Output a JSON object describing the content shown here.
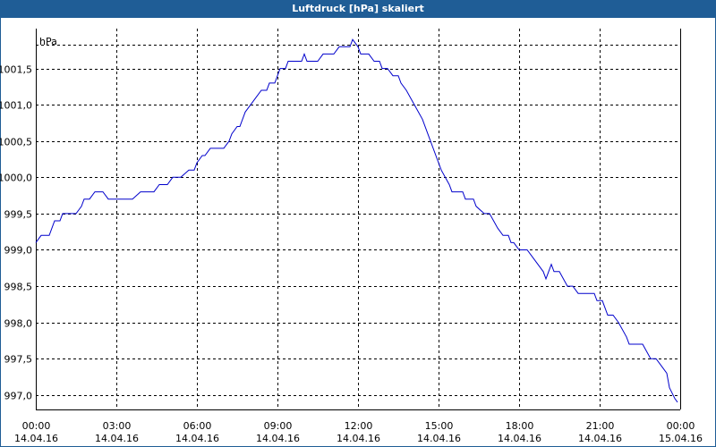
{
  "window": {
    "title": "Luftdruck [hPa] skaliert"
  },
  "colors": {
    "titlebar": "#1f5d96",
    "line": "#0000cc",
    "grid": "#000000"
  },
  "chart_data": {
    "type": "line",
    "title": "Luftdruck [hPa] skaliert",
    "ylabel": "hPa",
    "xlabel": "",
    "grid": true,
    "legend": "none",
    "x_unit": "hours",
    "xlim": [
      0,
      24
    ],
    "ylim": [
      996.8,
      1002.05
    ],
    "y_ticks": [
      997.0,
      997.5,
      998.0,
      998.5,
      999.0,
      999.5,
      1000.0,
      1000.5,
      1001.0,
      1001.5
    ],
    "y_tick_labels": [
      "997,0",
      "997,5",
      "998,0",
      "998,5",
      "999,0",
      "999,5",
      "1000,0",
      "1000,5",
      "1001,0",
      "1001,5"
    ],
    "x_ticks": [
      0,
      3,
      6,
      9,
      12,
      15,
      18,
      21,
      24
    ],
    "x_tick_labels": [
      {
        "time": "00:00",
        "date": "14.04.16"
      },
      {
        "time": "03:00",
        "date": "14.04.16"
      },
      {
        "time": "06:00",
        "date": "14.04.16"
      },
      {
        "time": "09:00",
        "date": "14.04.16"
      },
      {
        "time": "12:00",
        "date": "14.04.16"
      },
      {
        "time": "15:00",
        "date": "14.04.16"
      },
      {
        "time": "18:00",
        "date": "14.04.16"
      },
      {
        "time": "21:00",
        "date": "14.04.16"
      },
      {
        "time": "00:00",
        "date": "15.04.16"
      }
    ],
    "series": [
      {
        "points": [
          [
            0.0,
            999.1
          ],
          [
            0.2,
            999.2
          ],
          [
            0.5,
            999.2
          ],
          [
            0.7,
            999.4
          ],
          [
            0.9,
            999.4
          ],
          [
            1.0,
            999.5
          ],
          [
            1.5,
            999.5
          ],
          [
            1.7,
            999.6
          ],
          [
            1.8,
            999.7
          ],
          [
            2.0,
            999.7
          ],
          [
            2.2,
            999.8
          ],
          [
            2.5,
            999.8
          ],
          [
            2.7,
            999.7
          ],
          [
            3.6,
            999.7
          ],
          [
            3.9,
            999.8
          ],
          [
            4.4,
            999.8
          ],
          [
            4.6,
            999.9
          ],
          [
            4.9,
            999.9
          ],
          [
            5.1,
            1000.0
          ],
          [
            5.4,
            1000.0
          ],
          [
            5.7,
            1000.1
          ],
          [
            5.9,
            1000.1
          ],
          [
            6.0,
            1000.2
          ],
          [
            6.2,
            1000.3
          ],
          [
            6.3,
            1000.3
          ],
          [
            6.5,
            1000.4
          ],
          [
            7.0,
            1000.4
          ],
          [
            7.2,
            1000.5
          ],
          [
            7.3,
            1000.6
          ],
          [
            7.5,
            1000.7
          ],
          [
            7.6,
            1000.7
          ],
          [
            7.8,
            1000.9
          ],
          [
            8.0,
            1001.0
          ],
          [
            8.2,
            1001.1
          ],
          [
            8.4,
            1001.2
          ],
          [
            8.6,
            1001.2
          ],
          [
            8.7,
            1001.3
          ],
          [
            8.9,
            1001.3
          ],
          [
            9.1,
            1001.5
          ],
          [
            9.3,
            1001.5
          ],
          [
            9.4,
            1001.6
          ],
          [
            9.9,
            1001.6
          ],
          [
            10.0,
            1001.7
          ],
          [
            10.1,
            1001.6
          ],
          [
            10.5,
            1001.6
          ],
          [
            10.7,
            1001.7
          ],
          [
            11.1,
            1001.7
          ],
          [
            11.3,
            1001.8
          ],
          [
            11.7,
            1001.8
          ],
          [
            11.8,
            1001.9
          ],
          [
            12.0,
            1001.8
          ],
          [
            12.1,
            1001.7
          ],
          [
            12.4,
            1001.7
          ],
          [
            12.6,
            1001.6
          ],
          [
            12.8,
            1001.6
          ],
          [
            12.9,
            1001.5
          ],
          [
            13.1,
            1001.5
          ],
          [
            13.3,
            1001.4
          ],
          [
            13.5,
            1001.4
          ],
          [
            13.6,
            1001.3
          ],
          [
            13.8,
            1001.2
          ],
          [
            14.1,
            1001.0
          ],
          [
            14.4,
            1000.8
          ],
          [
            14.6,
            1000.6
          ],
          [
            14.9,
            1000.3
          ],
          [
            15.1,
            1000.1
          ],
          [
            15.4,
            999.9
          ],
          [
            15.5,
            999.8
          ],
          [
            15.9,
            999.8
          ],
          [
            16.0,
            999.7
          ],
          [
            16.3,
            999.7
          ],
          [
            16.4,
            999.6
          ],
          [
            16.7,
            999.5
          ],
          [
            16.9,
            999.5
          ],
          [
            17.2,
            999.3
          ],
          [
            17.4,
            999.2
          ],
          [
            17.6,
            999.2
          ],
          [
            17.7,
            999.1
          ],
          [
            17.8,
            999.1
          ],
          [
            18.0,
            999.0
          ],
          [
            18.3,
            999.0
          ],
          [
            18.5,
            998.9
          ],
          [
            18.9,
            998.7
          ],
          [
            19.0,
            998.6
          ],
          [
            19.2,
            998.8
          ],
          [
            19.3,
            998.7
          ],
          [
            19.5,
            998.7
          ],
          [
            19.8,
            998.5
          ],
          [
            20.0,
            998.5
          ],
          [
            20.2,
            998.4
          ],
          [
            20.8,
            998.4
          ],
          [
            20.9,
            998.3
          ],
          [
            21.1,
            998.3
          ],
          [
            21.3,
            998.1
          ],
          [
            21.5,
            998.1
          ],
          [
            21.7,
            998.0
          ],
          [
            22.0,
            997.8
          ],
          [
            22.1,
            997.7
          ],
          [
            22.5,
            997.7
          ],
          [
            22.6,
            997.7
          ],
          [
            22.9,
            997.5
          ],
          [
            23.1,
            997.5
          ],
          [
            23.3,
            997.4
          ],
          [
            23.5,
            997.3
          ],
          [
            23.6,
            997.1
          ],
          [
            23.8,
            996.95
          ],
          [
            23.9,
            996.9
          ]
        ]
      }
    ]
  }
}
